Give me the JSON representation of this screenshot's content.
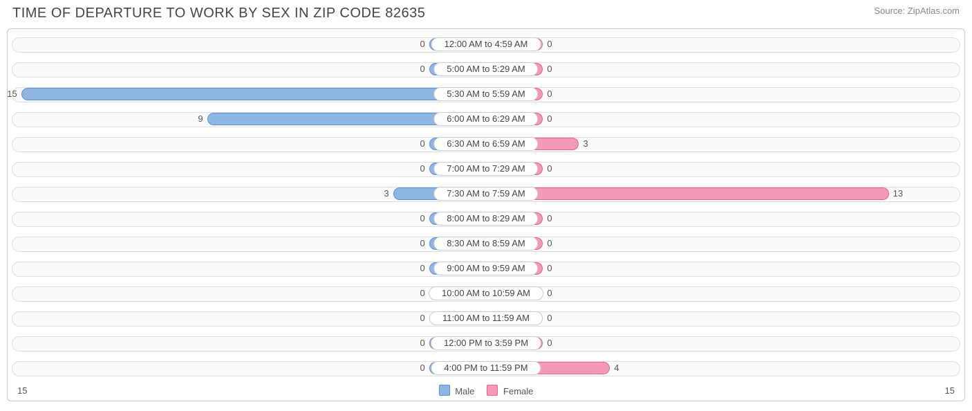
{
  "title": "TIME OF DEPARTURE TO WORK BY SEX IN ZIP CODE 82635",
  "source": "Source: ZipAtlas.com",
  "chart": {
    "type": "diverging-bar",
    "axis_max": 15,
    "axis_label_left": "15",
    "axis_label_right": "15",
    "min_bar_pct": 6.0,
    "colors": {
      "male_fill": "#90b6e4",
      "male_border": "#5a8fd6",
      "female_fill": "#f59ab9",
      "female_border": "#ec5e90",
      "track_bg": "#fafafa",
      "track_border": "#dddddd",
      "text": "#555555"
    },
    "legend": [
      {
        "label": "Male",
        "fill": "#90b6e4",
        "border": "#5a8fd6"
      },
      {
        "label": "Female",
        "fill": "#f59ab9",
        "border": "#ec5e90"
      }
    ],
    "rows": [
      {
        "label": "12:00 AM to 4:59 AM",
        "male": 0,
        "female": 0
      },
      {
        "label": "5:00 AM to 5:29 AM",
        "male": 0,
        "female": 0
      },
      {
        "label": "5:30 AM to 5:59 AM",
        "male": 15,
        "female": 0
      },
      {
        "label": "6:00 AM to 6:29 AM",
        "male": 9,
        "female": 0
      },
      {
        "label": "6:30 AM to 6:59 AM",
        "male": 0,
        "female": 3
      },
      {
        "label": "7:00 AM to 7:29 AM",
        "male": 0,
        "female": 0
      },
      {
        "label": "7:30 AM to 7:59 AM",
        "male": 3,
        "female": 13
      },
      {
        "label": "8:00 AM to 8:29 AM",
        "male": 0,
        "female": 0
      },
      {
        "label": "8:30 AM to 8:59 AM",
        "male": 0,
        "female": 0
      },
      {
        "label": "9:00 AM to 9:59 AM",
        "male": 0,
        "female": 0
      },
      {
        "label": "10:00 AM to 10:59 AM",
        "male": 0,
        "female": 0
      },
      {
        "label": "11:00 AM to 11:59 AM",
        "male": 0,
        "female": 0
      },
      {
        "label": "12:00 PM to 3:59 PM",
        "male": 0,
        "female": 0
      },
      {
        "label": "4:00 PM to 11:59 PM",
        "male": 0,
        "female": 4
      }
    ]
  }
}
